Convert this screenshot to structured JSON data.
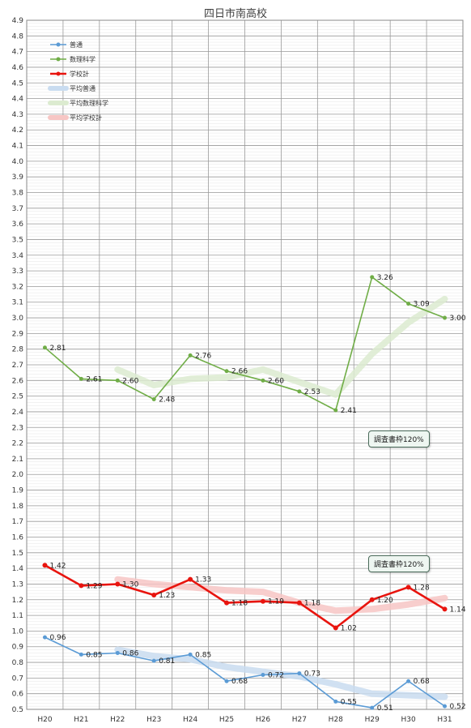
{
  "chart_data": {
    "type": "line",
    "title": "四日市南高校",
    "categories": [
      "H20",
      "H21",
      "H22",
      "H23",
      "H24",
      "H25",
      "H26",
      "H27",
      "H28",
      "H29",
      "H30",
      "H31"
    ],
    "ylim": [
      0.5,
      4.9
    ],
    "yticks": [
      "0.5",
      "0.6",
      "0.7",
      "0.8",
      "0.9",
      "1.0",
      "1.1",
      "1.2",
      "1.3",
      "1.4",
      "1.5",
      "1.6",
      "1.7",
      "1.8",
      "1.9",
      "2.0",
      "2.1",
      "2.2",
      "2.3",
      "2.4",
      "2.5",
      "2.6",
      "2.7",
      "2.8",
      "2.9",
      "3.0",
      "3.1",
      "3.2",
      "3.3",
      "3.4",
      "3.5",
      "3.6",
      "3.7",
      "3.8",
      "3.9",
      "4.0",
      "4.1",
      "4.2",
      "4.3",
      "4.4",
      "4.5",
      "4.6",
      "4.7",
      "4.8",
      "4.9"
    ],
    "grid": true,
    "legend_position": "top-left",
    "series": [
      {
        "name": "普通",
        "color": "#5b9bd5",
        "style": "line-marker",
        "values": [
          0.96,
          0.85,
          0.86,
          0.81,
          0.85,
          0.68,
          0.72,
          0.73,
          0.55,
          0.51,
          0.68,
          0.52
        ],
        "labels": [
          "0.96",
          "0.85",
          "0.86",
          "0.81",
          "0.85",
          "0.68",
          "0.72",
          "0.73",
          "0.55",
          "0.51",
          "0.68",
          "0.52"
        ]
      },
      {
        "name": "数理科学",
        "color": "#70ad47",
        "style": "line-marker",
        "values": [
          2.81,
          2.61,
          2.6,
          2.48,
          2.76,
          2.66,
          2.6,
          2.53,
          2.41,
          3.26,
          3.09,
          3.0
        ],
        "labels": [
          "2.81",
          "2.61",
          "2.60",
          "2.48",
          "2.76",
          "2.66",
          "2.60",
          "2.53",
          "2.41",
          "3.26",
          "3.09",
          "3.00"
        ]
      },
      {
        "name": "学校計",
        "color": "#e8140e",
        "style": "line-marker-bold",
        "values": [
          1.42,
          1.29,
          1.3,
          1.23,
          1.33,
          1.18,
          1.19,
          1.18,
          1.02,
          1.2,
          1.28,
          1.14
        ],
        "labels": [
          "1.42",
          "1.29",
          "1.30",
          "1.23",
          "1.33",
          "1.18",
          "1.19",
          "1.18",
          "1.02",
          "1.20",
          "1.28",
          "1.14"
        ]
      },
      {
        "name": "平均普通",
        "color": "#c9dcf0",
        "style": "band",
        "values": [
          null,
          null,
          0.88,
          0.84,
          0.82,
          0.77,
          0.74,
          0.71,
          0.66,
          0.6,
          0.59,
          0.58
        ]
      },
      {
        "name": "平均数理科学",
        "color": "#dcebd0",
        "style": "band",
        "values": [
          null,
          null,
          2.67,
          2.57,
          2.61,
          2.62,
          2.67,
          2.59,
          2.51,
          2.77,
          2.97,
          3.12
        ]
      },
      {
        "name": "平均学校計",
        "color": "#f7c6c4",
        "style": "band",
        "values": [
          null,
          null,
          1.33,
          1.3,
          1.28,
          1.26,
          1.25,
          1.18,
          1.13,
          1.14,
          1.17,
          1.21
        ]
      }
    ],
    "annotations": [
      {
        "text": "調査書枠120%",
        "near_series": "数理科学"
      },
      {
        "text": "調査書枠120%",
        "near_series": "学校計"
      }
    ]
  }
}
